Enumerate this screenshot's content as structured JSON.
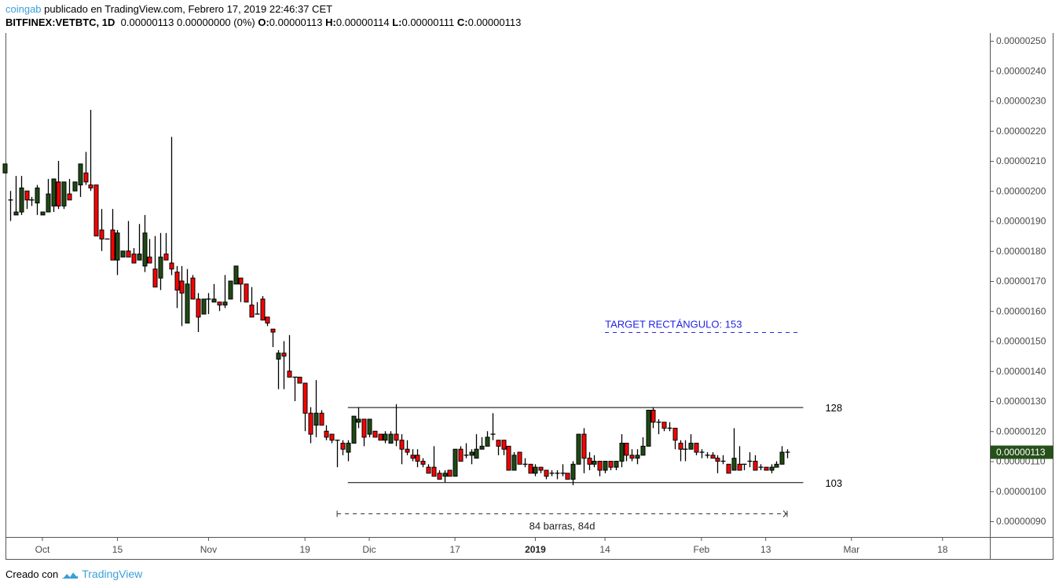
{
  "header": {
    "user": "coingab",
    "published": "publicado en TradingView.com, Febrero 17, 2019 22:46:37 CET",
    "symbol": "BITFINEX:VETBTC, 1D",
    "change": "0.00000113 0.00000000 (0%)",
    "o_label": "O:",
    "o": "0.00000113",
    "h_label": "H:",
    "h": "0.00000114",
    "l_label": "L:",
    "l": "0.00000111",
    "c_label": "C:",
    "c": "0.00000113"
  },
  "footer": {
    "created_with": "Creado con",
    "brand": "TradingView",
    "brand_icon": "tradingview-cloud-icon"
  },
  "colors": {
    "up": "#1f4a13",
    "down": "#ff0000",
    "outline": "#000000",
    "last_price_bg": "#26501a",
    "annotation_blue": "#2323e6",
    "brand": "#3aa0d8"
  },
  "chart_data": {
    "type": "candlestick",
    "symbol": "BITFINEX:VETBTC",
    "interval": "1D",
    "ylim": [
      9e-07,
      2.5e-06
    ],
    "y_ticks": [
      "0.00000250",
      "0.00000240",
      "0.00000230",
      "0.00000220",
      "0.00000210",
      "0.00000200",
      "0.00000190",
      "0.00000180",
      "0.00000170",
      "0.00000160",
      "0.00000150",
      "0.00000140",
      "0.00000130",
      "0.00000120",
      "0.00000110",
      "0.00000100",
      "0.00000090"
    ],
    "x_ticks": [
      {
        "date": "2018-10-01",
        "label": "Oct",
        "bold": false
      },
      {
        "date": "2018-10-15",
        "label": "15",
        "bold": false
      },
      {
        "date": "2018-11-01",
        "label": "Nov",
        "bold": false
      },
      {
        "date": "2018-11-19",
        "label": "19",
        "bold": false
      },
      {
        "date": "2018-12-01",
        "label": "Dic",
        "bold": false
      },
      {
        "date": "2018-12-17",
        "label": "17",
        "bold": false
      },
      {
        "date": "2019-01-01",
        "label": "2019",
        "bold": true
      },
      {
        "date": "2019-01-14",
        "label": "14",
        "bold": false
      },
      {
        "date": "2019-02-01",
        "label": "Feb",
        "bold": false
      },
      {
        "date": "2019-02-13",
        "label": "13",
        "bold": false
      },
      {
        "date": "2019-03-01",
        "label": "Mar",
        "bold": false
      },
      {
        "date": "2019-03-18",
        "label": "18",
        "bold": false
      }
    ],
    "last_price": {
      "value": 1.13e-06,
      "label": "0.00000113"
    },
    "grid": false,
    "annotations": {
      "resistance": {
        "price": 1.28e-06,
        "label": "128",
        "from": "2018-11-27",
        "to": "2019-02-20"
      },
      "support": {
        "price": 1.03e-06,
        "label": "103",
        "from": "2018-11-27",
        "to": "2019-02-20"
      },
      "target": {
        "price": 1.53e-06,
        "label": "TARGET RECTÁNGULO: 153",
        "from": "2019-01-14",
        "to": "2019-02-19"
      },
      "date_range": {
        "from": "2018-11-25",
        "to": "2019-02-17",
        "label": "84 barras, 84d"
      }
    },
    "columns": [
      "date",
      "open",
      "high",
      "low",
      "close"
    ],
    "candles": [
      [
        "2018-09-24",
        2.06e-06,
        2.09e-06,
        2.06e-06,
        2.09e-06
      ],
      [
        "2018-09-25",
        1.97e-06,
        2e-06,
        1.9e-06,
        1.97e-06
      ],
      [
        "2018-09-26",
        1.92e-06,
        2.05e-06,
        1.92e-06,
        1.93e-06
      ],
      [
        "2018-09-27",
        1.93e-06,
        2.05e-06,
        1.92e-06,
        2.01e-06
      ],
      [
        "2018-09-28",
        2e-06,
        2e-06,
        1.94e-06,
        1.97e-06
      ],
      [
        "2018-09-29",
        1.97e-06,
        1.98e-06,
        1.95e-06,
        1.97e-06
      ],
      [
        "2018-09-30",
        1.96e-06,
        2.02e-06,
        1.92e-06,
        2.01e-06
      ],
      [
        "2018-10-01",
        1.92e-06,
        1.93e-06,
        1.92e-06,
        1.93e-06
      ],
      [
        "2018-10-02",
        1.93e-06,
        2.04e-06,
        1.93e-06,
        1.99e-06
      ],
      [
        "2018-10-03",
        1.95e-06,
        2.04e-06,
        1.93e-06,
        2.04e-06
      ],
      [
        "2018-10-04",
        2.03e-06,
        2.1e-06,
        1.94e-06,
        1.95e-06
      ],
      [
        "2018-10-05",
        1.95e-06,
        2.03e-06,
        1.94e-06,
        2.03e-06
      ],
      [
        "2018-10-06",
        1.99e-06,
        2.04e-06,
        1.97e-06,
        1.97e-06
      ],
      [
        "2018-10-07",
        2e-06,
        2.03e-06,
        2e-06,
        2.03e-06
      ],
      [
        "2018-10-08",
        2.02e-06,
        2.09e-06,
        1.98e-06,
        2.09e-06
      ],
      [
        "2018-10-09",
        2.06e-06,
        2.13e-06,
        2.02e-06,
        2.03e-06
      ],
      [
        "2018-10-10",
        2.02e-06,
        2.27e-06,
        2e-06,
        2.01e-06
      ],
      [
        "2018-10-11",
        2.02e-06,
        2.02e-06,
        1.85e-06,
        1.85e-06
      ],
      [
        "2018-10-12",
        1.87e-06,
        1.94e-06,
        1.8e-06,
        1.84e-06
      ],
      [
        "2018-10-13",
        1.84e-06,
        1.84e-06,
        1.84e-06,
        1.84e-06
      ],
      [
        "2018-10-14",
        1.87e-06,
        1.94e-06,
        1.77e-06,
        1.77e-06
      ],
      [
        "2018-10-15",
        1.77e-06,
        1.87e-06,
        1.72e-06,
        1.86e-06
      ],
      [
        "2018-10-16",
        1.78e-06,
        1.8e-06,
        1.78e-06,
        1.8e-06
      ],
      [
        "2018-10-17",
        1.8e-06,
        1.9e-06,
        1.78e-06,
        1.78e-06
      ],
      [
        "2018-10-18",
        1.79e-06,
        1.81e-06,
        1.76e-06,
        1.76e-06
      ],
      [
        "2018-10-19",
        1.77e-06,
        1.89e-06,
        1.77e-06,
        1.79e-06
      ],
      [
        "2018-10-20",
        1.75e-06,
        1.92e-06,
        1.73e-06,
        1.86e-06
      ],
      [
        "2018-10-21",
        1.78e-06,
        1.84e-06,
        1.76e-06,
        1.76e-06
      ],
      [
        "2018-10-22",
        1.74e-06,
        1.85e-06,
        1.68e-06,
        1.68e-06
      ],
      [
        "2018-10-23",
        1.71e-06,
        1.86e-06,
        1.67e-06,
        1.78e-06
      ],
      [
        "2018-10-24",
        1.79e-06,
        1.86e-06,
        1.77e-06,
        1.77e-06
      ],
      [
        "2018-10-25",
        1.76e-06,
        2.18e-06,
        1.72e-06,
        1.74e-06
      ],
      [
        "2018-10-26",
        1.73e-06,
        1.75e-06,
        1.61e-06,
        1.67e-06
      ],
      [
        "2018-10-27",
        1.7e-06,
        1.75e-06,
        1.55e-06,
        1.66e-06
      ],
      [
        "2018-10-28",
        1.56e-06,
        1.74e-06,
        1.56e-06,
        1.69e-06
      ],
      [
        "2018-10-29",
        1.71e-06,
        1.72e-06,
        1.64e-06,
        1.64e-06
      ],
      [
        "2018-10-30",
        1.64e-06,
        1.66e-06,
        1.53e-06,
        1.58e-06
      ],
      [
        "2018-10-31",
        1.59e-06,
        1.64e-06,
        1.59e-06,
        1.64e-06
      ],
      [
        "2018-11-01",
        1.64e-06,
        1.66e-06,
        1.59e-06,
        1.64e-06
      ],
      [
        "2018-11-02",
        1.63e-06,
        1.69e-06,
        1.63e-06,
        1.64e-06
      ],
      [
        "2018-11-03",
        1.63e-06,
        1.63e-06,
        1.6e-06,
        1.62e-06
      ],
      [
        "2018-11-04",
        1.62e-06,
        1.72e-06,
        1.61e-06,
        1.63e-06
      ],
      [
        "2018-11-05",
        1.64e-06,
        1.7e-06,
        1.64e-06,
        1.7e-06
      ],
      [
        "2018-11-06",
        1.69e-06,
        1.75e-06,
        1.69e-06,
        1.75e-06
      ],
      [
        "2018-11-07",
        1.71e-06,
        1.71e-06,
        1.63e-06,
        1.69e-06
      ],
      [
        "2018-11-08",
        1.69e-06,
        1.69e-06,
        1.63e-06,
        1.63e-06
      ],
      [
        "2018-11-09",
        1.62e-06,
        1.68e-06,
        1.58e-06,
        1.58e-06
      ],
      [
        "2018-11-10",
        1.59e-06,
        1.63e-06,
        1.59e-06,
        1.59e-06
      ],
      [
        "2018-11-11",
        1.64e-06,
        1.65e-06,
        1.57e-06,
        1.57e-06
      ],
      [
        "2018-11-12",
        1.58e-06,
        1.58e-06,
        1.55e-06,
        1.56e-06
      ],
      [
        "2018-11-13",
        1.54e-06,
        1.54e-06,
        1.48e-06,
        1.53e-06
      ],
      [
        "2018-11-14",
        1.44e-06,
        1.47e-06,
        1.34e-06,
        1.46e-06
      ],
      [
        "2018-11-15",
        1.46e-06,
        1.5e-06,
        1.34e-06,
        1.45e-06
      ],
      [
        "2018-11-16",
        1.4e-06,
        1.52e-06,
        1.38e-06,
        1.38e-06
      ],
      [
        "2018-11-17",
        1.38e-06,
        1.38e-06,
        1.3e-06,
        1.38e-06
      ],
      [
        "2018-11-18",
        1.38e-06,
        1.38e-06,
        1.36e-06,
        1.36e-06
      ],
      [
        "2018-11-19",
        1.36e-06,
        1.36e-06,
        1.2e-06,
        1.26e-06
      ],
      [
        "2018-11-20",
        1.26e-06,
        1.28e-06,
        1.16e-06,
        1.19e-06
      ],
      [
        "2018-11-21",
        1.22e-06,
        1.37e-06,
        1.18e-06,
        1.26e-06
      ],
      [
        "2018-11-22",
        1.26e-06,
        1.27e-06,
        1.22e-06,
        1.22e-06
      ],
      [
        "2018-11-23",
        1.2e-06,
        1.22e-06,
        1.17e-06,
        1.18e-06
      ],
      [
        "2018-11-24",
        1.19e-06,
        1.19e-06,
        1.16e-06,
        1.17e-06
      ],
      [
        "2018-11-25",
        1.17e-06,
        1.17e-06,
        1.08e-06,
        1.17e-06
      ],
      [
        "2018-11-26",
        1.16e-06,
        1.17e-06,
        1.12e-06,
        1.14e-06
      ],
      [
        "2018-11-27",
        1.13e-06,
        1.17e-06,
        1.1e-06,
        1.16e-06
      ],
      [
        "2018-11-28",
        1.16e-06,
        1.25e-06,
        1.16e-06,
        1.25e-06
      ],
      [
        "2018-11-29",
        1.23e-06,
        1.28e-06,
        1.21e-06,
        1.24e-06
      ],
      [
        "2018-11-30",
        1.24e-06,
        1.24e-06,
        1.15e-06,
        1.18e-06
      ],
      [
        "2018-12-01",
        1.19e-06,
        1.24e-06,
        1.18e-06,
        1.24e-06
      ],
      [
        "2018-12-02",
        1.2e-06,
        1.2e-06,
        1.18e-06,
        1.18e-06
      ],
      [
        "2018-12-03",
        1.19e-06,
        1.19e-06,
        1.17e-06,
        1.17e-06
      ],
      [
        "2018-12-04",
        1.17e-06,
        1.2e-06,
        1.16e-06,
        1.19e-06
      ],
      [
        "2018-12-05",
        1.16e-06,
        1.2e-06,
        1.16e-06,
        1.19e-06
      ],
      [
        "2018-12-06",
        1.19e-06,
        1.29e-06,
        1.15e-06,
        1.17e-06
      ],
      [
        "2018-12-07",
        1.17e-06,
        1.19e-06,
        1.09e-06,
        1.14e-06
      ],
      [
        "2018-12-08",
        1.14e-06,
        1.17e-06,
        1.12e-06,
        1.13e-06
      ],
      [
        "2018-12-09",
        1.12e-06,
        1.14e-06,
        1.1e-06,
        1.11e-06
      ],
      [
        "2018-12-10",
        1.12e-06,
        1.14e-06,
        1.08e-06,
        1.1e-06
      ],
      [
        "2018-12-11",
        1.1e-06,
        1.11e-06,
        1.08e-06,
        1.09e-06
      ],
      [
        "2018-12-12",
        1.08e-06,
        1.09e-06,
        1.06e-06,
        1.06e-06
      ],
      [
        "2018-12-13",
        1.08e-06,
        1.15e-06,
        1.05e-06,
        1.05e-06
      ],
      [
        "2018-12-14",
        1.06e-06,
        1.07e-06,
        1.04e-06,
        1.04e-06
      ],
      [
        "2018-12-15",
        1.05e-06,
        1.07e-06,
        1.03e-06,
        1.06e-06
      ],
      [
        "2018-12-16",
        1.07e-06,
        1.07e-06,
        1.05e-06,
        1.05e-06
      ],
      [
        "2018-12-17",
        1.05e-06,
        1.14e-06,
        1.05e-06,
        1.14e-06
      ],
      [
        "2018-12-18",
        1.14e-06,
        1.15e-06,
        1.1e-06,
        1.1e-06
      ],
      [
        "2018-12-19",
        1.12e-06,
        1.16e-06,
        1.11e-06,
        1.12e-06
      ],
      [
        "2018-12-20",
        1.12e-06,
        1.14e-06,
        1.09e-06,
        1.13e-06
      ],
      [
        "2018-12-21",
        1.11e-06,
        1.19e-06,
        1.11e-06,
        1.14e-06
      ],
      [
        "2018-12-22",
        1.14e-06,
        1.18e-06,
        1.14e-06,
        1.15e-06
      ],
      [
        "2018-12-23",
        1.15e-06,
        1.2e-06,
        1.15e-06,
        1.18e-06
      ],
      [
        "2018-12-24",
        1.19e-06,
        1.26e-06,
        1.17e-06,
        1.19e-06
      ],
      [
        "2018-12-25",
        1.17e-06,
        1.17e-06,
        1.12e-06,
        1.15e-06
      ],
      [
        "2018-12-26",
        1.17e-06,
        1.17e-06,
        1.12e-06,
        1.14e-06
      ],
      [
        "2018-12-27",
        1.15e-06,
        1.15e-06,
        1.07e-06,
        1.07e-06
      ],
      [
        "2018-12-28",
        1.07e-06,
        1.13e-06,
        1.07e-06,
        1.12e-06
      ],
      [
        "2018-12-29",
        1.13e-06,
        1.13e-06,
        1.09e-06,
        1.09e-06
      ],
      [
        "2018-12-30",
        1.09e-06,
        1.11e-06,
        1.08e-06,
        1.09e-06
      ],
      [
        "2018-12-31",
        1.09e-06,
        1.09e-06,
        1.06e-06,
        1.06e-06
      ],
      [
        "2019-01-01",
        1.06e-06,
        1.09e-06,
        1.05e-06,
        1.08e-06
      ],
      [
        "2019-01-02",
        1.08e-06,
        1.08e-06,
        1.06e-06,
        1.07e-06
      ],
      [
        "2019-01-03",
        1.07e-06,
        1.07e-06,
        1.04e-06,
        1.05e-06
      ],
      [
        "2019-01-04",
        1.06e-06,
        1.07e-06,
        1.05e-06,
        1.06e-06
      ],
      [
        "2019-01-05",
        1.06e-06,
        1.07e-06,
        1.04e-06,
        1.06e-06
      ],
      [
        "2019-01-06",
        1.06e-06,
        1.09e-06,
        1.05e-06,
        1.06e-06
      ],
      [
        "2019-01-07",
        1.06e-06,
        1.06e-06,
        1.04e-06,
        1.04e-06
      ],
      [
        "2019-01-08",
        1.04e-06,
        1.1e-06,
        1.02e-06,
        1.09e-06
      ],
      [
        "2019-01-09",
        1.09e-06,
        1.19e-06,
        1.09e-06,
        1.19e-06
      ],
      [
        "2019-01-10",
        1.19e-06,
        1.21e-06,
        1.06e-06,
        1.11e-06
      ],
      [
        "2019-01-11",
        1.11e-06,
        1.13e-06,
        1.07e-06,
        1.09e-06
      ],
      [
        "2019-01-12",
        1.09e-06,
        1.12e-06,
        1.08e-06,
        1.1e-06
      ],
      [
        "2019-01-13",
        1.1e-06,
        1.1e-06,
        1.05e-06,
        1.07e-06
      ],
      [
        "2019-01-14",
        1.07e-06,
        1.1e-06,
        1.06e-06,
        1.1e-06
      ],
      [
        "2019-01-15",
        1.1e-06,
        1.1e-06,
        1.07e-06,
        1.08e-06
      ],
      [
        "2019-01-16",
        1.08e-06,
        1.1e-06,
        1.07e-06,
        1.1e-06
      ],
      [
        "2019-01-17",
        1.1e-06,
        1.19e-06,
        1.08e-06,
        1.16e-06
      ],
      [
        "2019-01-18",
        1.16e-06,
        1.16e-06,
        1.1e-06,
        1.12e-06
      ],
      [
        "2019-01-19",
        1.12e-06,
        1.14e-06,
        1.1e-06,
        1.11e-06
      ],
      [
        "2019-01-20",
        1.11e-06,
        1.14e-06,
        1.09e-06,
        1.12e-06
      ],
      [
        "2019-01-21",
        1.12e-06,
        1.18e-06,
        1.12e-06,
        1.15e-06
      ],
      [
        "2019-01-22",
        1.15e-06,
        1.27e-06,
        1.15e-06,
        1.27e-06
      ],
      [
        "2019-01-23",
        1.27e-06,
        1.28e-06,
        1.21e-06,
        1.23e-06
      ],
      [
        "2019-01-24",
        1.23e-06,
        1.24e-06,
        1.19e-06,
        1.23e-06
      ],
      [
        "2019-01-25",
        1.23e-06,
        1.23e-06,
        1.2e-06,
        1.21e-06
      ],
      [
        "2019-01-26",
        1.21e-06,
        1.23e-06,
        1.2e-06,
        1.21e-06
      ],
      [
        "2019-01-27",
        1.21e-06,
        1.21e-06,
        1.14e-06,
        1.17e-06
      ],
      [
        "2019-01-28",
        1.16e-06,
        1.17e-06,
        1.1e-06,
        1.14e-06
      ],
      [
        "2019-01-29",
        1.14e-06,
        1.17e-06,
        1.1e-06,
        1.14e-06
      ],
      [
        "2019-01-30",
        1.14e-06,
        1.19e-06,
        1.14e-06,
        1.16e-06
      ],
      [
        "2019-01-31",
        1.16e-06,
        1.16e-06,
        1.12e-06,
        1.13e-06
      ],
      [
        "2019-02-01",
        1.13e-06,
        1.14e-06,
        1.11e-06,
        1.13e-06
      ],
      [
        "2019-02-02",
        1.12e-06,
        1.13e-06,
        1.11e-06,
        1.12e-06
      ],
      [
        "2019-02-03",
        1.12e-06,
        1.13e-06,
        1.11e-06,
        1.11e-06
      ],
      [
        "2019-02-04",
        1.11e-06,
        1.12e-06,
        1.06e-06,
        1.1e-06
      ],
      [
        "2019-02-05",
        1.1e-06,
        1.12e-06,
        1.09e-06,
        1.1e-06
      ],
      [
        "2019-02-06",
        1.09e-06,
        1.09e-06,
        1.06e-06,
        1.06e-06
      ],
      [
        "2019-02-07",
        1.07e-06,
        1.21e-06,
        1.07e-06,
        1.11e-06
      ],
      [
        "2019-02-08",
        1.09e-06,
        1.15e-06,
        1.07e-06,
        1.07e-06
      ],
      [
        "2019-02-09",
        1.09e-06,
        1.09e-06,
        1.07e-06,
        1.09e-06
      ],
      [
        "2019-02-10",
        1.1e-06,
        1.13e-06,
        1.08e-06,
        1.1e-06
      ],
      [
        "2019-02-11",
        1.1e-06,
        1.12e-06,
        1.07e-06,
        1.07e-06
      ],
      [
        "2019-02-12",
        1.08e-06,
        1.09e-06,
        1.07e-06,
        1.08e-06
      ],
      [
        "2019-02-13",
        1.08e-06,
        1.08e-06,
        1.07e-06,
        1.07e-06
      ],
      [
        "2019-02-14",
        1.07e-06,
        1.09e-06,
        1.06e-06,
        1.08e-06
      ],
      [
        "2019-02-15",
        1.08e-06,
        1.1e-06,
        1.08e-06,
        1.09e-06
      ],
      [
        "2019-02-16",
        1.09e-06,
        1.15e-06,
        1.09e-06,
        1.13e-06
      ],
      [
        "2019-02-17",
        1.13e-06,
        1.14e-06,
        1.11e-06,
        1.13e-06
      ]
    ]
  }
}
